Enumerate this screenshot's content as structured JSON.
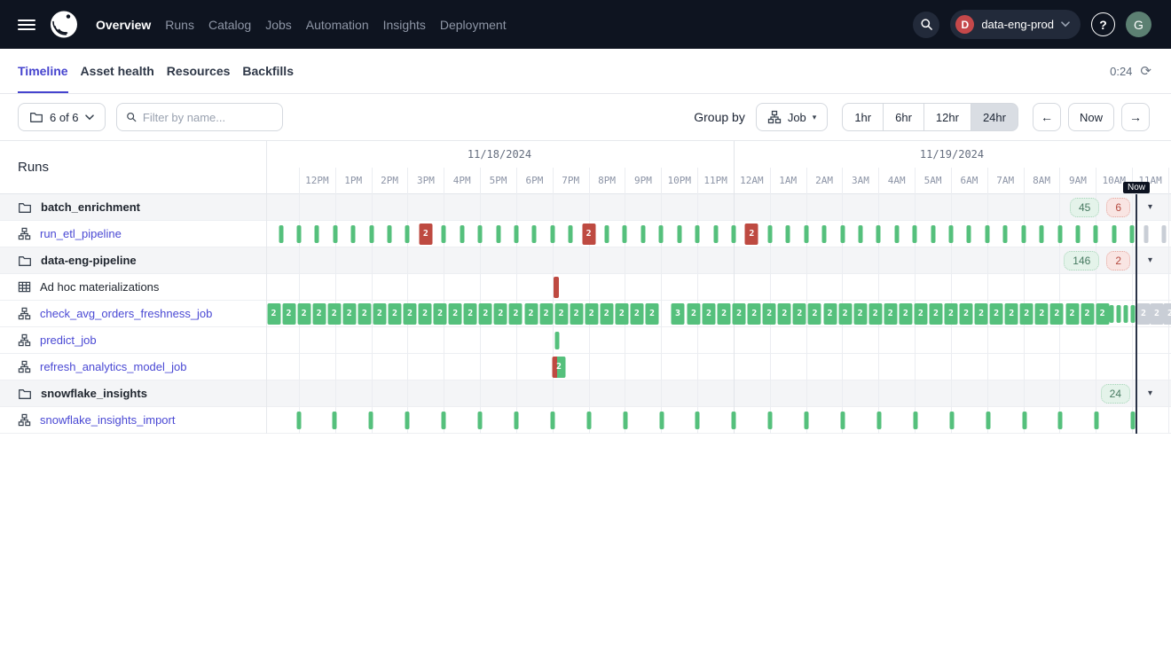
{
  "header": {
    "menu_icon": "hamburger-icon",
    "logo_icon": "dagster-logo",
    "nav": [
      {
        "label": "Overview",
        "active": true
      },
      {
        "label": "Runs"
      },
      {
        "label": "Catalog"
      },
      {
        "label": "Jobs"
      },
      {
        "label": "Automation"
      },
      {
        "label": "Insights"
      },
      {
        "label": "Deployment"
      }
    ],
    "search_icon": "search-icon",
    "workspace": {
      "initial": "D",
      "name": "data-eng-prod",
      "chevron_icon": "chevron-down-icon"
    },
    "help_icon": "help-icon",
    "avatar_initial": "G"
  },
  "tabs": {
    "items": [
      {
        "label": "Timeline",
        "active": true
      },
      {
        "label": "Asset health"
      },
      {
        "label": "Resources"
      },
      {
        "label": "Backfills"
      }
    ],
    "refresh_countdown": "0:24",
    "refresh_icon": "refresh-icon"
  },
  "toolbar": {
    "scope": {
      "icon": "folder-icon",
      "label": "6 of 6",
      "chevron_icon": "chevron-down-icon"
    },
    "filter": {
      "icon": "search-icon",
      "placeholder": "Filter by name..."
    },
    "group_by_label": "Group by",
    "group_value": "Job",
    "group_icon": "job-icon",
    "ranges": [
      {
        "label": "1hr"
      },
      {
        "label": "6hr"
      },
      {
        "label": "12hr"
      },
      {
        "label": "24hr",
        "active": true
      }
    ],
    "prev_label": "←",
    "now_label": "Now",
    "next_label": "→"
  },
  "timeline": {
    "runs_title": "Runs",
    "dates": [
      "11/18/2024",
      "11/19/2024"
    ],
    "hours": [
      "12PM",
      "1PM",
      "2PM",
      "3PM",
      "4PM",
      "5PM",
      "6PM",
      "7PM",
      "8PM",
      "9PM",
      "10PM",
      "11PM",
      "12AM",
      "1AM",
      "2AM",
      "3AM",
      "4AM",
      "5AM",
      "6AM",
      "7AM",
      "8AM",
      "9AM",
      "10AM",
      "11AM"
    ],
    "now_marker_label": "Now",
    "rows": [
      {
        "type": "group",
        "icon": "folder",
        "label": "batch_enrichment",
        "badges": [
          {
            "text": "45",
            "variant": "success"
          },
          {
            "text": "6",
            "variant": "failure"
          }
        ]
      },
      {
        "type": "job",
        "icon": "job",
        "label": "run_etl_pipeline",
        "link": true,
        "marks": [
          {
            "kind": "tick",
            "variant": "success",
            "start": 316.5,
            "step": 20.42,
            "count": 48,
            "skip": [
              8,
              17,
              26
            ]
          },
          {
            "kind": "box",
            "variant": "failure",
            "label": "2",
            "at": [
              479.9,
              663.6,
              847.4
            ]
          },
          {
            "kind": "tick",
            "variant": "future",
            "at": [
              1292,
              1312
            ]
          }
        ]
      },
      {
        "type": "group",
        "icon": "folder",
        "label": "data-eng-pipeline",
        "badges": [
          {
            "text": "146",
            "variant": "success"
          },
          {
            "text": "2",
            "variant": "failure"
          }
        ]
      },
      {
        "type": "job",
        "icon": "table",
        "label": "Ad hoc materializations",
        "link": false,
        "marks": [
          {
            "kind": "tick",
            "variant": "failure",
            "at": [
              627
            ]
          }
        ]
      },
      {
        "type": "job",
        "icon": "job",
        "label": "check_avg_orders_freshness_job",
        "link": true,
        "marks": [
          {
            "kind": "box",
            "variant": "success",
            "label": "2",
            "start": 308.5,
            "step": 17.06,
            "count": 26
          },
          {
            "kind": "box",
            "variant": "success",
            "label": "3",
            "at": [
              764
            ]
          },
          {
            "kind": "box",
            "variant": "success",
            "label": "2",
            "start": 782,
            "step": 17.06,
            "count": 28
          },
          {
            "kind": "tick",
            "variant": "success",
            "at": [
              1253,
              1261,
              1269,
              1277
            ]
          },
          {
            "kind": "box",
            "variant": "future",
            "label": "2",
            "at": [
              1289,
              1304,
              1319
            ]
          }
        ]
      },
      {
        "type": "job",
        "icon": "job",
        "label": "predict_job",
        "link": true,
        "marks": [
          {
            "kind": "tick",
            "variant": "success",
            "at": [
              628
            ]
          }
        ]
      },
      {
        "type": "job",
        "icon": "job",
        "label": "refresh_analytics_model_job",
        "link": true,
        "marks": [
          {
            "kind": "box",
            "variant": "mixed",
            "label": "2",
            "at": [
              630
            ]
          }
        ]
      },
      {
        "type": "group",
        "icon": "folder",
        "label": "snowflake_insights",
        "badges": [
          {
            "text": "24",
            "variant": "success"
          }
        ]
      },
      {
        "type": "job",
        "icon": "job",
        "label": "snowflake_insights_import",
        "link": true,
        "marks": [
          {
            "kind": "tick",
            "variant": "success",
            "start": 336.5,
            "step": 40.9,
            "count": 24
          }
        ]
      }
    ]
  },
  "colors": {
    "topbar_bg": "#0E1420",
    "accent": "#4543CE",
    "link": "#4A49D4",
    "success": "#55C07C",
    "failure": "#BE4A41",
    "future": "#C9CED6",
    "now_line": "#2A3347",
    "badge_success_bg": "#E4F3EA",
    "badge_success_text": "#477A61",
    "badge_success_border": "#A7D4B9",
    "badge_failure_bg": "#F9E5E3",
    "badge_failure_text": "#B54A40",
    "badge_failure_border": "#E3A79F"
  }
}
